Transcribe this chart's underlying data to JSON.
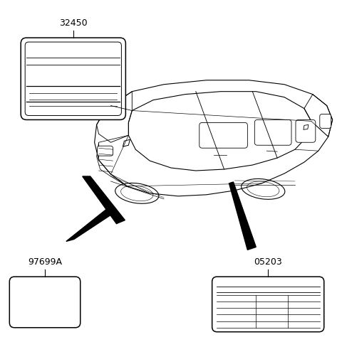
{
  "bg_color": "#ffffff",
  "line_color": "#000000",
  "fig_width": 4.8,
  "fig_height": 4.88
}
